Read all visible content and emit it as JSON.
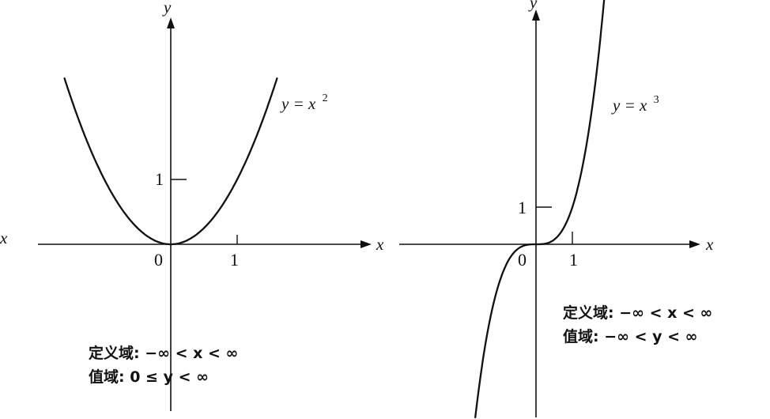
{
  "left_graph": {
    "x_axis_label": "x",
    "x_axis_label_far": "x",
    "y_axis_label": "y",
    "origin_label": "0",
    "x_tick_label": "1",
    "y_tick_label": "1",
    "equation_base": "y = x",
    "equation_exponent": "2",
    "domain_text": "定义域: −∞ < x < ∞",
    "range_text": "值域: 0 ≤ y < ∞"
  },
  "right_graph": {
    "x_axis_label": "x",
    "y_axis_label": "y",
    "origin_label": "0",
    "x_tick_label": "1",
    "y_tick_label": "1",
    "equation_base": "y = x",
    "equation_exponent": "3",
    "domain_text": "定义域: −∞ < x < ∞",
    "range_text": "值域: −∞ < y < ∞"
  }
}
